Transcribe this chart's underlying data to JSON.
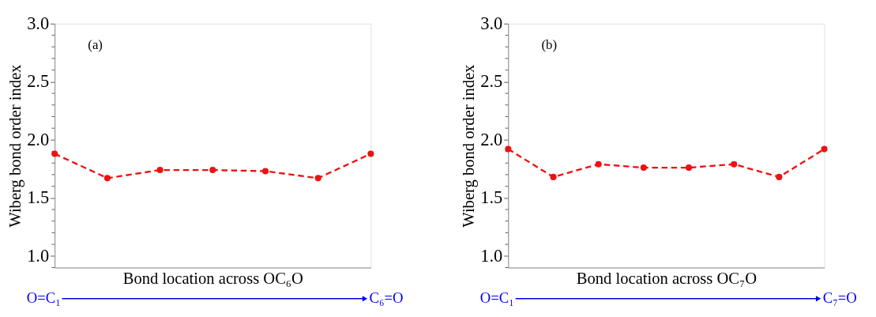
{
  "chart_data": [
    {
      "type": "line",
      "title": "(a)",
      "xlabel": "Bond location across OC₆O",
      "ylabel": "Wiberg bond order index",
      "categories": [
        null,
        null,
        null,
        null,
        null,
        null,
        null
      ],
      "series": [
        {
          "color": "#ee1111",
          "values": [
            1.88,
            1.67,
            1.74,
            1.74,
            1.73,
            1.67,
            1.88
          ]
        }
      ],
      "ylim": [
        0.9,
        3.0
      ],
      "yticks": [
        {
          "value": 0.9,
          "label": null
        },
        {
          "value": 1.0,
          "label": "1.0"
        },
        {
          "value": 1.1,
          "label": null
        },
        {
          "value": 1.2,
          "label": null
        },
        {
          "value": 1.3,
          "label": null
        },
        {
          "value": 1.4,
          "label": null
        },
        {
          "value": 1.5,
          "label": "1.5"
        },
        {
          "value": 1.6,
          "label": null
        },
        {
          "value": 1.7,
          "label": null
        },
        {
          "value": 1.8,
          "label": null
        },
        {
          "value": 1.9,
          "label": null
        },
        {
          "value": 2.0,
          "label": "2.0"
        },
        {
          "value": 2.1,
          "label": null
        },
        {
          "value": 2.2,
          "label": null
        },
        {
          "value": 2.3,
          "label": null
        },
        {
          "value": 2.4,
          "label": null
        },
        {
          "value": 2.5,
          "label": "2.5"
        },
        {
          "value": 2.6,
          "label": null
        },
        {
          "value": 2.7,
          "label": null
        },
        {
          "value": 2.8,
          "label": null
        },
        {
          "value": 2.9,
          "label": null
        },
        {
          "value": 3.0,
          "label": "3.0"
        }
      ],
      "tick_labels": "y",
      "grid": false,
      "marker": "circle",
      "line_style": "dashed",
      "annotations": [
        "O=C₁",
        "C₆=O"
      ]
    },
    {
      "type": "line",
      "title": "(b)",
      "xlabel": "Bond location across OC₇O",
      "ylabel": "Wiberg bond order index",
      "categories": [
        null,
        null,
        null,
        null,
        null,
        null,
        null,
        null
      ],
      "series": [
        {
          "color": "#ee1111",
          "values": [
            1.92,
            1.68,
            1.79,
            1.76,
            1.76,
            1.79,
            1.68,
            1.92
          ]
        }
      ],
      "ylim": [
        0.9,
        3.0
      ],
      "yticks": [
        {
          "value": 0.9,
          "label": null
        },
        {
          "value": 1.0,
          "label": "1.0"
        },
        {
          "value": 1.1,
          "label": null
        },
        {
          "value": 1.2,
          "label": null
        },
        {
          "value": 1.3,
          "label": null
        },
        {
          "value": 1.4,
          "label": null
        },
        {
          "value": 1.5,
          "label": "1.5"
        },
        {
          "value": 1.6,
          "label": null
        },
        {
          "value": 1.7,
          "label": null
        },
        {
          "value": 1.8,
          "label": null
        },
        {
          "value": 1.9,
          "label": null
        },
        {
          "value": 2.0,
          "label": "2.0"
        },
        {
          "value": 2.1,
          "label": null
        },
        {
          "value": 2.2,
          "label": null
        },
        {
          "value": 2.3,
          "label": null
        },
        {
          "value": 2.4,
          "label": null
        },
        {
          "value": 2.5,
          "label": "2.5"
        },
        {
          "value": 2.6,
          "label": null
        },
        {
          "value": 2.7,
          "label": null
        },
        {
          "value": 2.8,
          "label": null
        },
        {
          "value": 2.9,
          "label": null
        },
        {
          "value": 3.0,
          "label": "3.0"
        }
      ],
      "tick_labels": "y",
      "grid": false,
      "marker": "circle",
      "line_style": "dashed",
      "annotations": [
        "O=C₁",
        "C₇=O"
      ]
    }
  ]
}
